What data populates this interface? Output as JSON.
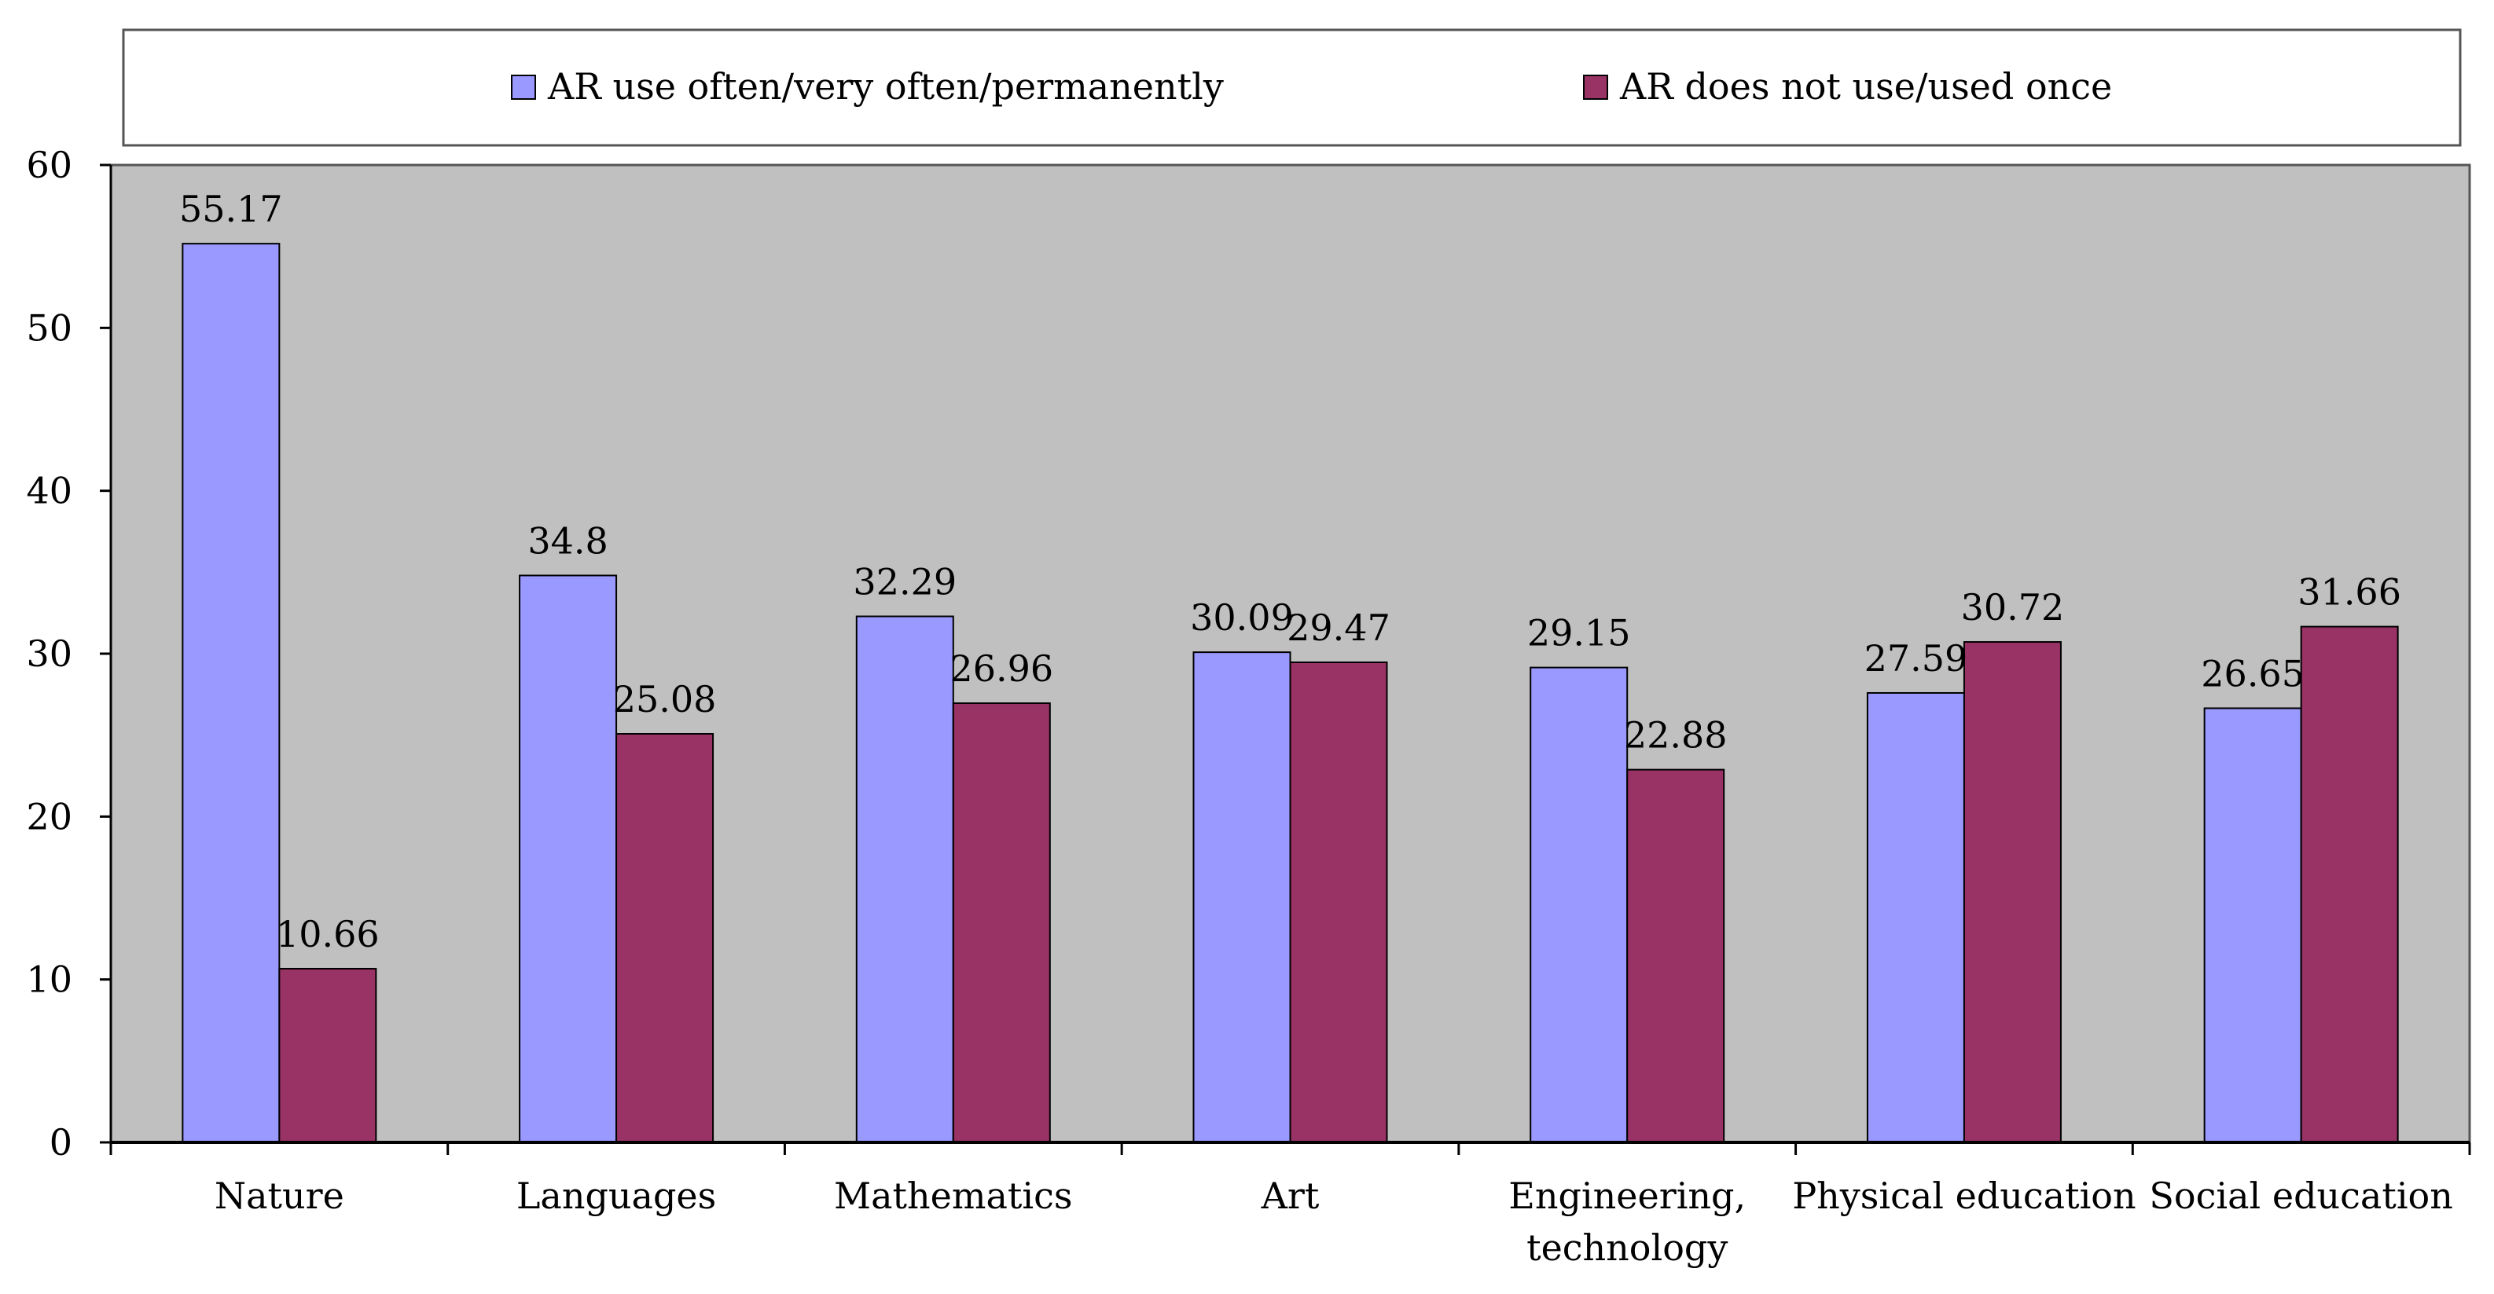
{
  "chart_data": {
    "type": "bar",
    "title": "",
    "xlabel": "",
    "ylabel": "",
    "ylim": [
      0,
      60
    ],
    "yticks": [
      0,
      10,
      20,
      30,
      40,
      50,
      60
    ],
    "grid": false,
    "legend_position": "top",
    "plot_background": "#C0C0C0",
    "categories": [
      [
        "Nature"
      ],
      [
        "Languages"
      ],
      [
        "Mathematics"
      ],
      [
        "Art"
      ],
      [
        "Engineering,",
        "technology"
      ],
      [
        "Physical education"
      ],
      [
        "Social education"
      ]
    ],
    "series": [
      {
        "name": "AR use often/very often/permanently",
        "color": "#9999FF",
        "values": [
          55.17,
          34.8,
          32.29,
          30.09,
          29.15,
          27.59,
          26.65
        ],
        "labels": [
          "55.17",
          "34.8",
          "32.29",
          "30.09",
          "29.15",
          "27.59",
          "26.65"
        ]
      },
      {
        "name": "AR does not use/used once",
        "color": "#993366",
        "values": [
          10.66,
          25.08,
          26.96,
          29.47,
          22.88,
          30.72,
          31.66
        ],
        "labels": [
          "10.66",
          "25.08",
          "26.96",
          "29.47",
          "22.88",
          "30.72",
          "31.66"
        ]
      }
    ]
  }
}
